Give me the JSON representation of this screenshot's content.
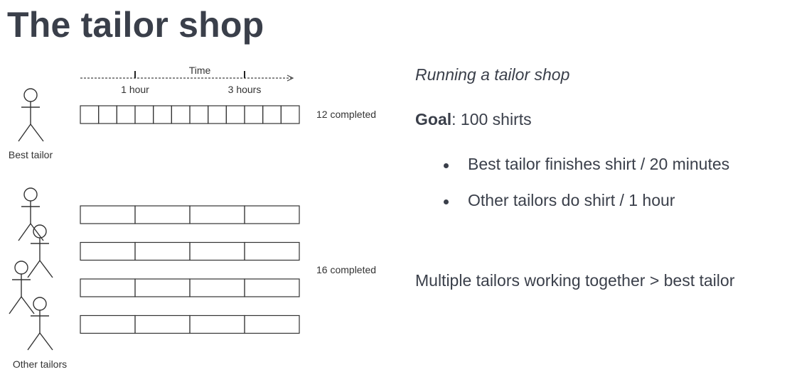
{
  "title": "The tailor shop",
  "diagram": {
    "time_label": "Time",
    "tick_1": "1 hour",
    "tick_2": "3 hours",
    "best_tailor_label": "Best tailor",
    "best_completed": "12 completed",
    "other_tailors_label": "Other tailors",
    "other_completed": "16 completed",
    "best_tailor_cells": 12,
    "other_tailor_rows": 4,
    "other_tailor_cells_per_row": 4
  },
  "panel": {
    "subtitle": "Running a tailor shop",
    "goal_label": "Goal",
    "goal_text": ": 100 shirts",
    "bullets": [
      "Best tailor finishes shirt / 20 minutes",
      "Other tailors do shirt / 1 hour"
    ],
    "conclusion": "Multiple tailors working together > best tailor"
  }
}
